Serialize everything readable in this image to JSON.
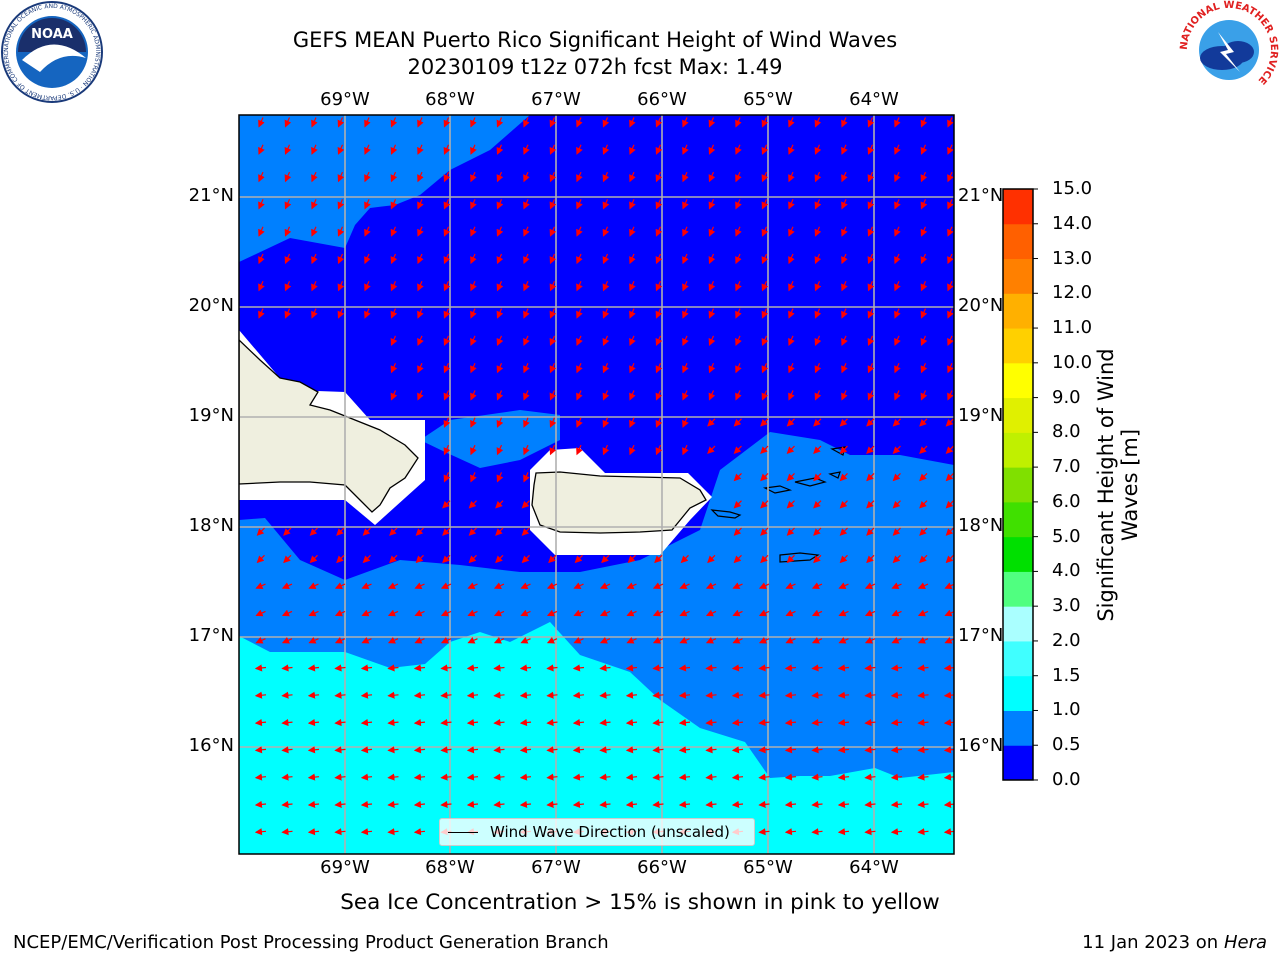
{
  "title": {
    "line1": "GEFS MEAN Puerto Rico Significant Height of Wind Waves",
    "line2": "20230109 t12z 072h fcst   Max: 1.49"
  },
  "map": {
    "lon_labels": [
      "69°W",
      "68°W",
      "67°W",
      "66°W",
      "65°W",
      "64°W"
    ],
    "lat_labels": [
      "21°N",
      "20°N",
      "19°N",
      "18°N",
      "17°N",
      "16°N"
    ],
    "legend_label": "Wind Wave Direction (unscaled)",
    "colors": {
      "c0": "#0000ff",
      "c05": "#0080ff",
      "c10": "#00ffff",
      "land": "#efefdf",
      "arrow": "#ff0000",
      "grid": "#b0b0b0"
    }
  },
  "colorbar": {
    "title": "Significant Height of Wind Waves [m]",
    "ticks": [
      "15.0",
      "14.0",
      "13.0",
      "12.0",
      "11.0",
      "10.0",
      "9.0",
      "8.0",
      "7.0",
      "6.0",
      "5.0",
      "4.0",
      "3.0",
      "2.0",
      "1.5",
      "1.0",
      "0.5",
      "0.0"
    ],
    "colors": [
      "#0000ff",
      "#0080ff",
      "#00ffff",
      "#40ffff",
      "#aaffff",
      "#50ff80",
      "#00e000",
      "#40e000",
      "#80e000",
      "#c0f000",
      "#e0f000",
      "#ffff00",
      "#ffd000",
      "#ffb000",
      "#ff8000",
      "#ff6000",
      "#ff3000",
      "#ff0000"
    ]
  },
  "caption": "Sea Ice Concentration > 15% is shown in pink to yellow",
  "footer": {
    "left": "NCEP/EMC/Verification Post Processing Product Generation Branch",
    "right_prefix": "11 Jan 2023 on ",
    "right_host": "Hera"
  },
  "logos": {
    "noaa_text": "NOAA",
    "noaa_ring": "NATIONAL OCEANIC AND ATMOSPHERIC ADMINISTRATION · U.S. DEPARTMENT OF COMMERCE",
    "nws_ring": "NATIONAL WEATHER SERVICE"
  }
}
